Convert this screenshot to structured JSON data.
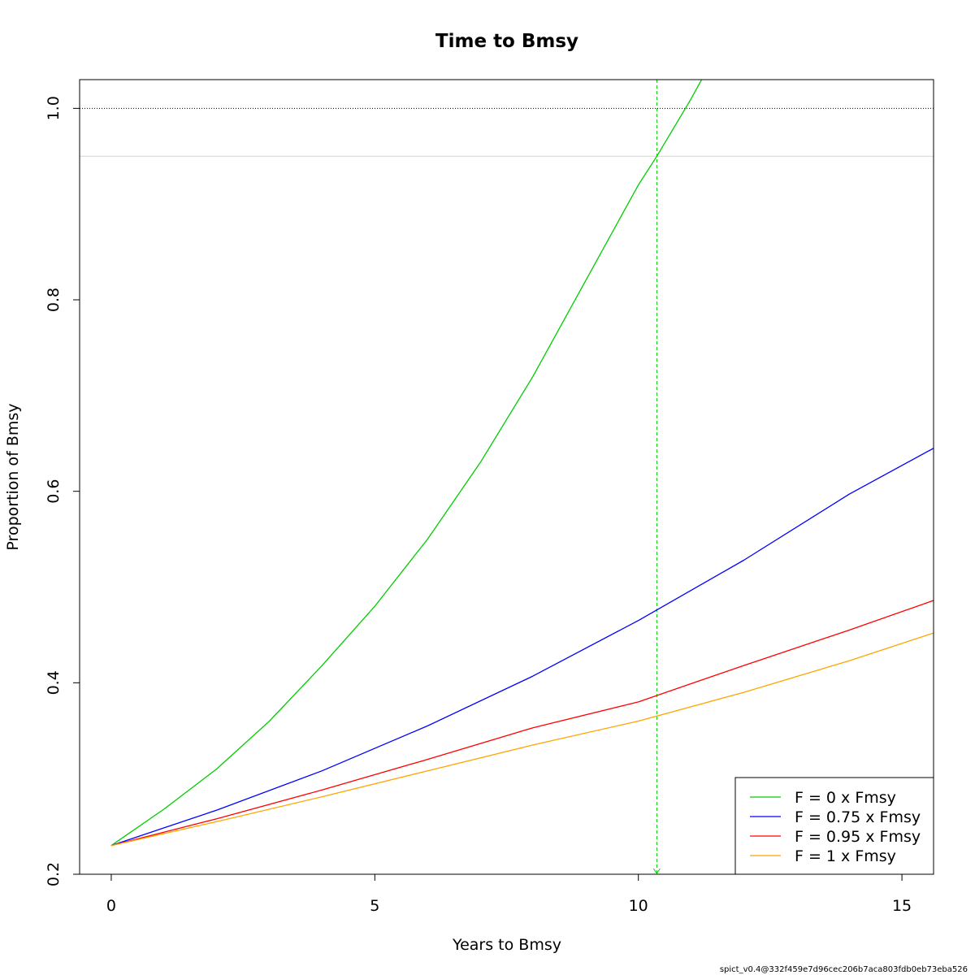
{
  "chart_data": {
    "type": "line",
    "title": "Time to Bmsy",
    "xlabel": "Years to Bmsy",
    "ylabel": "Proportion of Bmsy",
    "xlim": [
      -0.6,
      15.6
    ],
    "ylim": [
      0.2,
      1.03
    ],
    "x_ticks": [
      0,
      5,
      10,
      15
    ],
    "y_ticks": [
      0.2,
      0.4,
      0.6,
      0.8,
      1.0
    ],
    "x_tick_labels": [
      "0",
      "5",
      "10",
      "15"
    ],
    "y_tick_labels": [
      "0.2",
      "0.4",
      "0.6",
      "0.8",
      "1.0"
    ],
    "grid": false,
    "reference_lines": {
      "bmsy_level": 1.0,
      "threshold_level": 0.95,
      "time_to_95pct_f0": 10.35
    },
    "series": [
      {
        "name": "F = 0 x Fmsy",
        "color": "#00cd00",
        "points": [
          [
            0,
            0.23
          ],
          [
            1,
            0.268
          ],
          [
            2,
            0.31
          ],
          [
            3,
            0.36
          ],
          [
            4,
            0.418
          ],
          [
            5,
            0.48
          ],
          [
            6,
            0.55
          ],
          [
            7,
            0.63
          ],
          [
            8,
            0.72
          ],
          [
            9,
            0.82
          ],
          [
            10,
            0.92
          ],
          [
            10.35,
            0.95
          ],
          [
            11,
            1.01
          ],
          [
            11.2,
            1.03
          ]
        ]
      },
      {
        "name": "F = 0.75 x Fmsy",
        "color": "#0000ff",
        "points": [
          [
            0,
            0.23
          ],
          [
            2,
            0.267
          ],
          [
            4,
            0.308
          ],
          [
            6,
            0.355
          ],
          [
            8,
            0.407
          ],
          [
            10,
            0.465
          ],
          [
            12,
            0.528
          ],
          [
            14,
            0.597
          ],
          [
            15.6,
            0.645
          ]
        ]
      },
      {
        "name": "F = 0.95 x Fmsy",
        "color": "#ff0000",
        "points": [
          [
            0,
            0.23
          ],
          [
            2,
            0.258
          ],
          [
            4,
            0.288
          ],
          [
            6,
            0.32
          ],
          [
            8,
            0.353
          ],
          [
            10,
            0.38
          ],
          [
            12,
            0.418
          ],
          [
            14,
            0.455
          ],
          [
            15.6,
            0.486
          ]
        ]
      },
      {
        "name": "F = 1 x Fmsy",
        "color": "#ffa500",
        "points": [
          [
            0,
            0.23
          ],
          [
            2,
            0.255
          ],
          [
            4,
            0.281
          ],
          [
            6,
            0.308
          ],
          [
            8,
            0.335
          ],
          [
            10,
            0.36
          ],
          [
            12,
            0.39
          ],
          [
            14,
            0.423
          ],
          [
            15.6,
            0.452
          ]
        ]
      }
    ],
    "legend_position": "bottom-right",
    "footer_note": "spict_v0.4@332f459e7d96cec206b7aca803fdb0eb73eba526"
  }
}
